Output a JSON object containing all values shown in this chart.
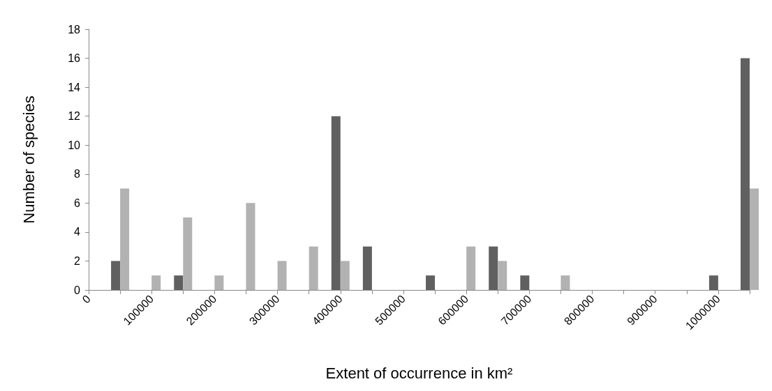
{
  "chart_data": {
    "type": "bar",
    "xlabel": "Extent of occurrence in km²",
    "ylabel": "Number of species",
    "categories": [
      "0",
      null,
      "100000",
      null,
      "200000",
      null,
      "300000",
      null,
      "400000",
      null,
      "500000",
      null,
      "600000",
      null,
      "700000",
      null,
      "800000",
      null,
      "900000",
      null,
      "1000000",
      null
    ],
    "series": [
      {
        "color": "#606060",
        "values": [
          0,
          2,
          0,
          1,
          0,
          0,
          0,
          0,
          12,
          3,
          0,
          1,
          0,
          3,
          1,
          0,
          0,
          0,
          0,
          0,
          1,
          16
        ]
      },
      {
        "color": "#b2b2b2",
        "values": [
          0,
          7,
          1,
          5,
          1,
          6,
          2,
          3,
          2,
          0,
          0,
          0,
          3,
          2,
          0,
          1,
          0,
          0,
          0,
          0,
          0,
          7
        ]
      }
    ],
    "ylim": [
      0,
      18
    ],
    "yticks": [
      0,
      2,
      4,
      6,
      8,
      10,
      12,
      14,
      16,
      18
    ],
    "grid": false
  }
}
